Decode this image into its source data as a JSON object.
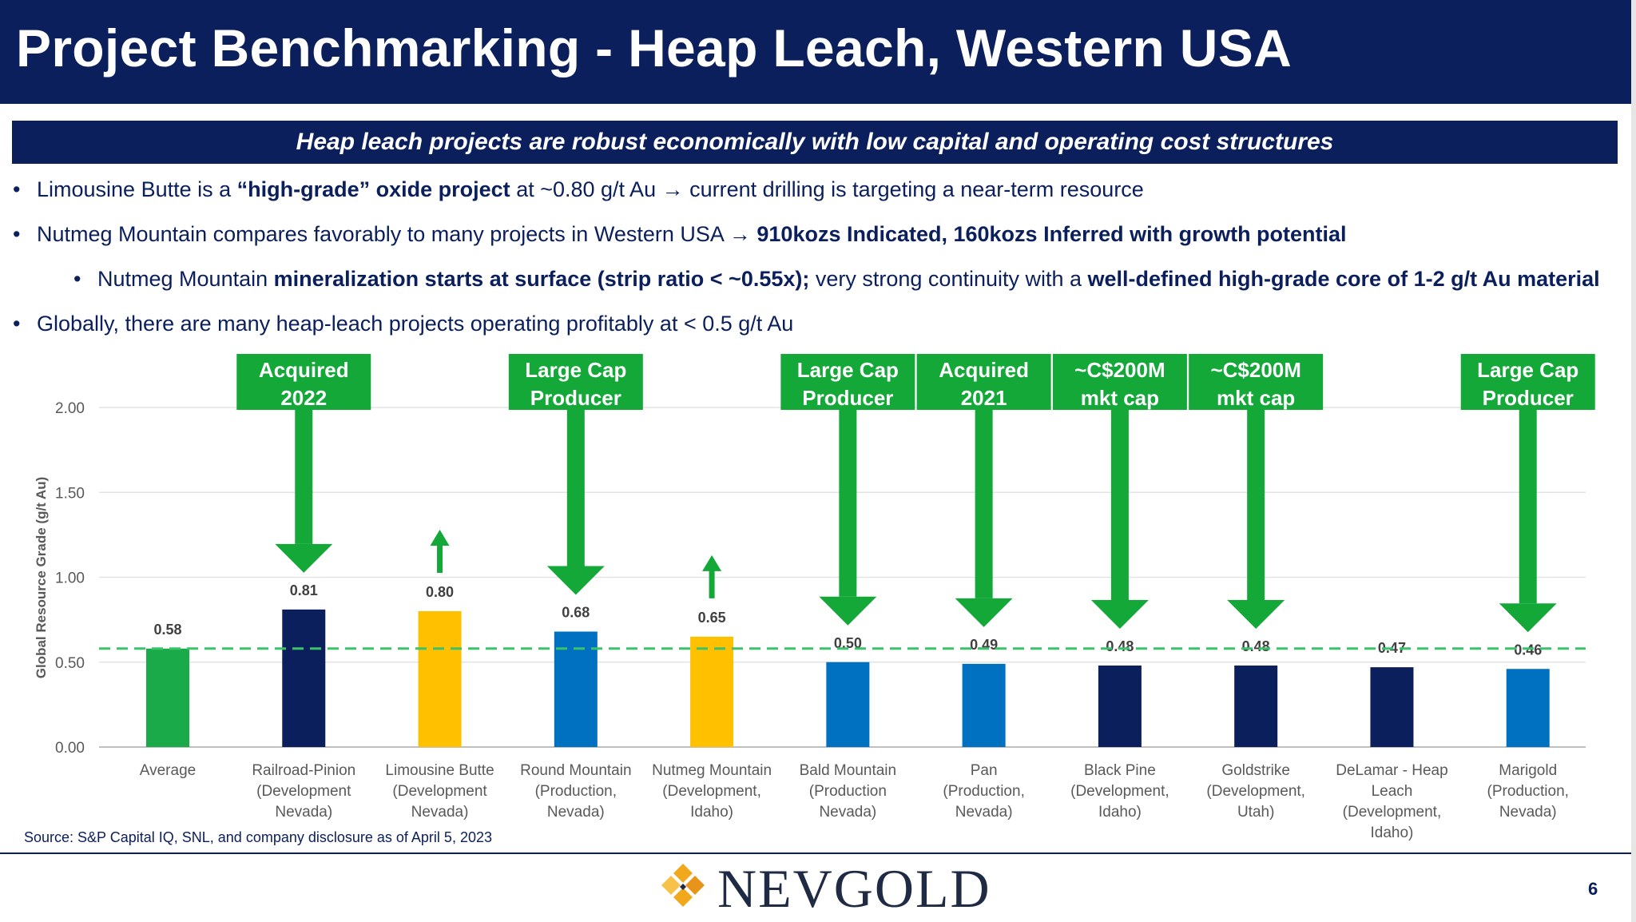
{
  "header": {
    "title": "Project Benchmarking - Heap Leach, Western USA"
  },
  "banner": {
    "text": "Heap leach projects are robust economically with low capital and operating cost structures"
  },
  "bullets": {
    "b1": {
      "p1": "Limousine Butte is a ",
      "p2": "“high-grade” oxide project",
      "p3": " at ~0.80 g/t Au → current drilling is targeting a near-term resource"
    },
    "b2": {
      "p1": "Nutmeg Mountain compares favorably to many projects in Western USA → ",
      "p2": "910kozs Indicated, 160kozs Inferred with growth potential"
    },
    "b3": {
      "p1": "Nutmeg Mountain ",
      "p2": "mineralization starts at surface (strip ratio < ~0.55x);",
      "p3": " very strong continuity with a ",
      "p4": "well-defined high-grade core of 1-2 g/t Au material"
    },
    "b4": {
      "p1": "Globally, there are many heap-leach projects operating profitably at < 0.5 g/t Au"
    }
  },
  "chart_data": {
    "type": "bar",
    "ylabel": "Global Resource Grade (g/t Au)",
    "ylim": [
      0,
      2
    ],
    "yticks": [
      "0.00",
      "0.50",
      "1.00",
      "1.50",
      "2.00"
    ],
    "categories": [
      [
        "Average"
      ],
      [
        "Railroad-Pinion",
        "(Development",
        "Nevada)"
      ],
      [
        "Limousine Butte",
        "(Development",
        "Nevada)"
      ],
      [
        "Round Mountain",
        "(Production,",
        "Nevada)"
      ],
      [
        "Nutmeg Mountain",
        "(Development,",
        "Idaho)"
      ],
      [
        "Bald Mountain",
        "(Production",
        "Nevada)"
      ],
      [
        "Pan",
        "(Production,",
        "Nevada)"
      ],
      [
        "Black Pine",
        "(Development,",
        "Idaho)"
      ],
      [
        "Goldstrike",
        "(Development,",
        "Utah)"
      ],
      [
        "DeLamar - Heap",
        "Leach",
        "(Development,",
        "Idaho)"
      ],
      [
        "Marigold",
        "(Production,",
        "Nevada)"
      ]
    ],
    "values": [
      0.58,
      0.81,
      0.8,
      0.68,
      0.65,
      0.5,
      0.49,
      0.48,
      0.48,
      0.47,
      0.46
    ],
    "value_labels": [
      "0.58",
      "0.81",
      "0.80",
      "0.68",
      "0.65",
      "0.50",
      "0.49",
      "0.48",
      "0.48",
      "0.47",
      "0.46"
    ],
    "bar_colors": [
      "#1aaa4a",
      "#0a1f5c",
      "#ffc000",
      "#0070c0",
      "#ffc000",
      "#0070c0",
      "#0070c0",
      "#0a1f5c",
      "#0a1f5c",
      "#0a1f5c",
      "#0070c0"
    ],
    "average_line": 0.58,
    "average_line_color": "#3cc26a",
    "callouts": [
      {
        "index": 1,
        "lines": [
          "Acquired",
          "2022"
        ]
      },
      {
        "index": 3,
        "lines": [
          "Large Cap",
          "Producer"
        ]
      },
      {
        "index": 5,
        "lines": [
          "Large Cap",
          "Producer"
        ]
      },
      {
        "index": 6,
        "lines": [
          "Acquired",
          "2021"
        ]
      },
      {
        "index": 7,
        "lines": [
          "~C$200M",
          "mkt cap"
        ]
      },
      {
        "index": 8,
        "lines": [
          "~C$200M",
          "mkt cap"
        ]
      },
      {
        "index": 10,
        "lines": [
          "Large Cap",
          "Producer"
        ]
      }
    ],
    "up_arrows": [
      2,
      4
    ],
    "callout_color": "#13a838",
    "grid": true
  },
  "footer": {
    "source": "Source: S&P Capital IQ, SNL, and company disclosure as of April 5, 2023",
    "logo_text": "NEVGOLD",
    "page_number": "6"
  }
}
